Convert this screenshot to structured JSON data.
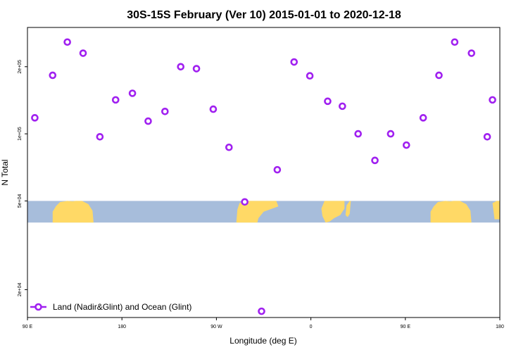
{
  "chart_data": {
    "type": "scatter",
    "title": "30S-15S February (Ver 10)   2015-01-01 to 2020-12-18",
    "xlabel": "Longitude (deg E)",
    "ylabel": "N Total",
    "x_ticks": [
      {
        "value": 90,
        "label": "90 E"
      },
      {
        "value": 180,
        "label": "180"
      },
      {
        "value": 270,
        "label": "90 W"
      },
      {
        "value": 360,
        "label": "0"
      },
      {
        "value": 450,
        "label": "90 E"
      },
      {
        "value": 540,
        "label": "180"
      }
    ],
    "y_ticks": [
      {
        "value": 20000,
        "label": "2e+04"
      },
      {
        "value": 50000,
        "label": "5e+04"
      },
      {
        "value": 100000,
        "label": "1e+05"
      },
      {
        "value": 200000,
        "label": "2e+05"
      }
    ],
    "y_scale": "log",
    "xlim": [
      90,
      540
    ],
    "ylim": [
      15000,
      300000
    ],
    "legend_position": "bottom-left",
    "series": [
      {
        "name": "Land (Nadir&Glint) and Ocean (Glint)",
        "color": "#a020f0",
        "marker": "open-circle",
        "x": [
          97,
          114,
          128,
          143,
          159,
          174,
          190,
          205,
          221,
          236,
          251,
          267,
          282,
          297,
          313,
          328,
          344,
          359,
          376,
          390,
          405,
          421,
          436,
          451,
          467,
          482,
          497,
          513,
          528,
          533
        ],
        "y": [
          118000,
          183000,
          258000,
          230000,
          97000,
          142000,
          152000,
          114000,
          126000,
          200000,
          196000,
          129000,
          87000,
          49500,
          16000,
          69000,
          210000,
          182000,
          140000,
          133000,
          100000,
          76000,
          100000,
          89000,
          118000,
          183000,
          258000,
          230000,
          97000,
          142000
        ]
      }
    ],
    "background_map": {
      "ocean_color": "#a7bddb",
      "land_color": "#ffd966",
      "y_band": [
        40000,
        50000
      ]
    }
  }
}
